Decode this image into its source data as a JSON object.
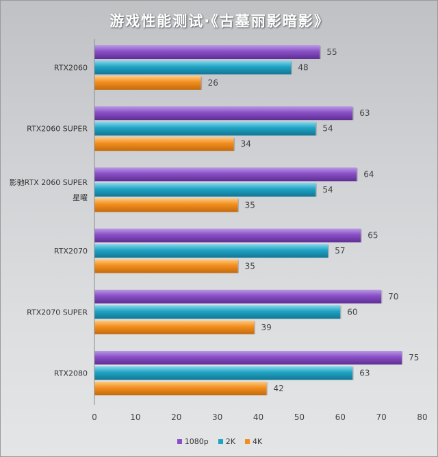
{
  "chart_data": {
    "type": "bar",
    "orientation": "horizontal",
    "title": "游戏性能测试·《古墓丽影暗影》",
    "categories": [
      [
        "RTX2060"
      ],
      [
        "RTX2060 SUPER"
      ],
      [
        "影驰RTX 2060 SUPER",
        "星曜"
      ],
      [
        "RTX2070"
      ],
      [
        "RTX2070 SUPER"
      ],
      [
        "RTX2080"
      ]
    ],
    "series": [
      {
        "name": "1080p",
        "color": "#8a4fc6",
        "values": [
          55,
          63,
          64,
          65,
          70,
          75
        ]
      },
      {
        "name": "2K",
        "color": "#1fa3c4",
        "values": [
          48,
          54,
          54,
          57,
          60,
          63
        ]
      },
      {
        "name": "4K",
        "color": "#f28e1e",
        "values": [
          26,
          34,
          35,
          35,
          39,
          42
        ]
      }
    ],
    "xlim": [
      0,
      80
    ],
    "xticks": [
      0,
      10,
      20,
      30,
      40,
      50,
      60,
      70,
      80
    ],
    "grid": false,
    "legend_position": "bottom"
  }
}
